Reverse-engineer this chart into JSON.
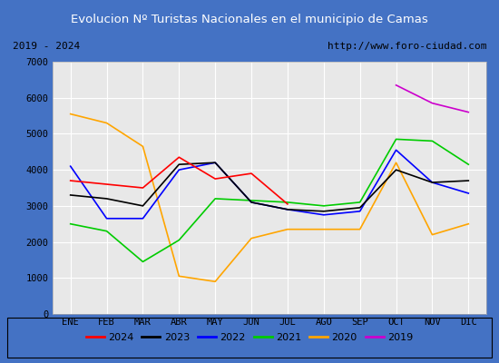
{
  "title": "Evolucion Nº Turistas Nacionales en el municipio de Camas",
  "subtitle_left": "2019 - 2024",
  "subtitle_right": "http://www.foro-ciudad.com",
  "months": [
    "ENE",
    "FEB",
    "MAR",
    "ABR",
    "MAY",
    "JUN",
    "JUL",
    "AGO",
    "SEP",
    "OCT",
    "NOV",
    "DIC"
  ],
  "series": {
    "2024": [
      3700,
      3600,
      3500,
      4350,
      3750,
      3900,
      3050,
      null,
      null,
      null,
      null,
      null
    ],
    "2023": [
      3300,
      3200,
      3000,
      4150,
      4200,
      3100,
      2900,
      2850,
      2950,
      4000,
      3650,
      3700
    ],
    "2022": [
      4100,
      2650,
      2650,
      4000,
      4200,
      3100,
      2900,
      2750,
      2850,
      4550,
      3650,
      3350
    ],
    "2021": [
      2500,
      2300,
      1450,
      2050,
      3200,
      3150,
      3100,
      3000,
      3100,
      4850,
      4800,
      4150
    ],
    "2020": [
      5550,
      5300,
      4650,
      1050,
      900,
      2100,
      2350,
      2350,
      2350,
      4200,
      2200,
      2500
    ],
    "2019": [
      null,
      null,
      null,
      null,
      null,
      null,
      null,
      null,
      null,
      6350,
      5850,
      5600
    ]
  },
  "colors": {
    "2024": "#ff0000",
    "2023": "#000000",
    "2022": "#0000ff",
    "2021": "#00cc00",
    "2020": "#ffa500",
    "2019": "#cc00cc"
  },
  "ylim": [
    0,
    7000
  ],
  "yticks": [
    0,
    1000,
    2000,
    3000,
    4000,
    5000,
    6000,
    7000
  ],
  "title_bg_color": "#4472c4",
  "title_text_color": "#ffffff",
  "plot_bg_color": "#e8e8e8",
  "grid_color": "#ffffff",
  "outer_bg_color": "#4472c4",
  "subtitle_bg_color": "#d8d8d8",
  "subtitle_border_color": "#888888"
}
